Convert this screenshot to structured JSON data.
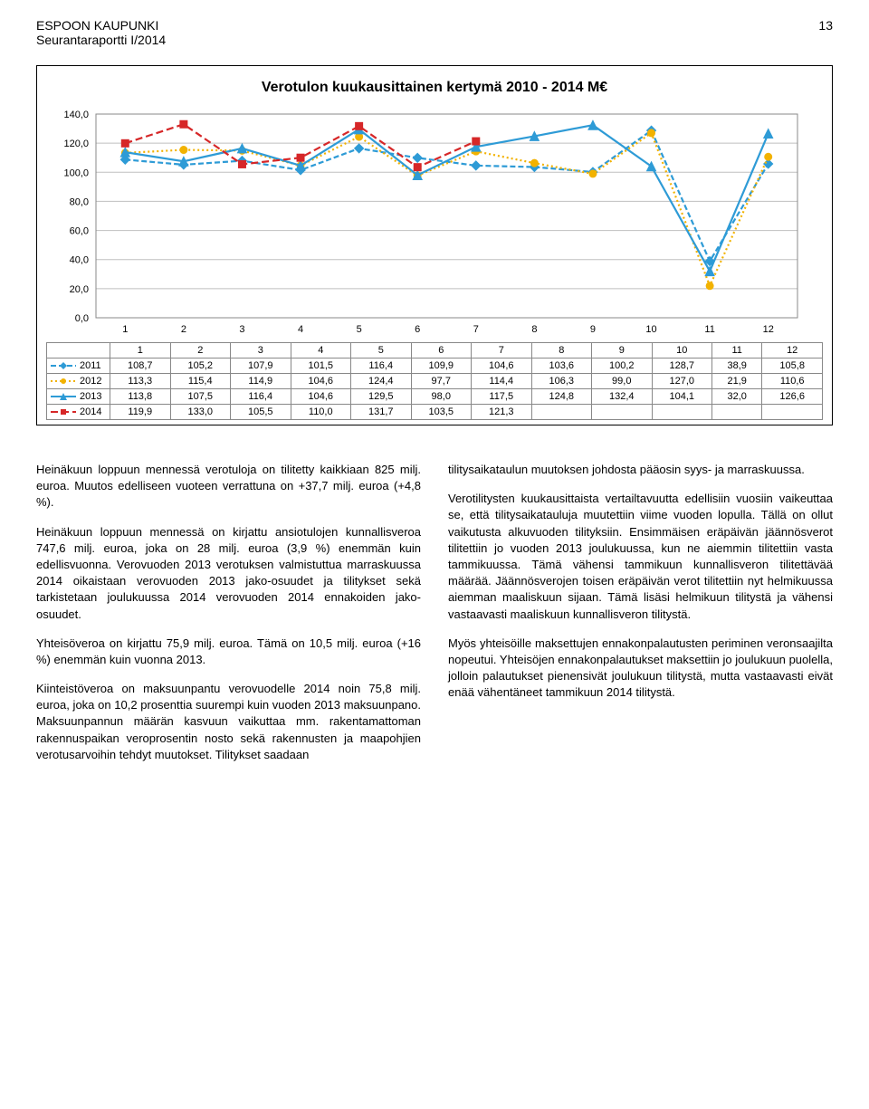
{
  "header": {
    "org": "ESPOON KAUPUNKI",
    "report": "Seurantaraportti I/2014",
    "page": "13"
  },
  "chart": {
    "title": "Verotulon kuukausittainen kertymä 2010 - 2014 M€",
    "type": "line",
    "xlabels": [
      "1",
      "2",
      "3",
      "4",
      "5",
      "6",
      "7",
      "8",
      "9",
      "10",
      "11",
      "12"
    ],
    "ylim": [
      0,
      140
    ],
    "ytick_step": 20,
    "yticks": [
      "0,0",
      "20,0",
      "40,0",
      "60,0",
      "80,0",
      "100,0",
      "120,0",
      "140,0"
    ],
    "background_color": "#ffffff",
    "grid_color": "#bfbfbf",
    "series": [
      {
        "name": "2011",
        "color": "#2e9bd6",
        "marker": "diamond",
        "dash": "6,3",
        "values": [
          108.7,
          105.2,
          107.9,
          101.5,
          116.4,
          109.9,
          104.6,
          103.6,
          100.2,
          128.7,
          38.9,
          105.8
        ],
        "labels": [
          "108,7",
          "105,2",
          "107,9",
          "101,5",
          "116,4",
          "109,9",
          "104,6",
          "103,6",
          "100,2",
          "128,7",
          "38,9",
          "105,8"
        ]
      },
      {
        "name": "2012",
        "color": "#f2b200",
        "marker": "circle",
        "dash": "2,3",
        "values": [
          113.3,
          115.4,
          114.9,
          104.6,
          124.4,
          97.7,
          114.4,
          106.3,
          99.0,
          127.0,
          21.9,
          110.6
        ],
        "labels": [
          "113,3",
          "115,4",
          "114,9",
          "104,6",
          "124,4",
          "97,7",
          "114,4",
          "106,3",
          "99,0",
          "127,0",
          "21,9",
          "110,6"
        ]
      },
      {
        "name": "2013",
        "color": "#2e9bd6",
        "marker": "triangle",
        "dash": "none",
        "values": [
          113.8,
          107.5,
          116.4,
          104.6,
          129.5,
          98.0,
          117.5,
          124.8,
          132.4,
          104.1,
          32.0,
          126.6
        ],
        "labels": [
          "113,8",
          "107,5",
          "116,4",
          "104,6",
          "129,5",
          "98,0",
          "117,5",
          "124,8",
          "132,4",
          "104,1",
          "32,0",
          "126,6"
        ]
      },
      {
        "name": "2014",
        "color": "#d62728",
        "marker": "square",
        "dash": "8,4",
        "values": [
          119.9,
          133.0,
          105.5,
          110.0,
          131.7,
          103.5,
          121.3
        ],
        "labels": [
          "119,9",
          "133,0",
          "105,5",
          "110,0",
          "131,7",
          "103,5",
          "121,3"
        ]
      }
    ]
  },
  "text": {
    "left": {
      "p1": "Heinäkuun loppuun mennessä verotuloja on tilitetty kaikkiaan 825 milj. euroa. Muutos edelliseen vuoteen verrattuna on +37,7 milj. euroa (+4,8 %).",
      "p2": "Heinäkuun loppuun mennessä on kirjattu ansiotulojen kunnallisveroa 747,6 milj. euroa, joka on 28 milj. euroa (3,9 %) enemmän kuin edellisvuonna. Verovuoden 2013 verotuksen valmistuttua marraskuussa 2014 oikaistaan verovuoden 2013 jako-osuudet ja tilitykset sekä tarkistetaan joulukuussa 2014 verovuoden 2014 ennakoiden jako-osuudet.",
      "p3": "Yhteisöveroa on kirjattu 75,9 milj. euroa. Tämä on 10,5 milj. euroa (+16 %) enemmän kuin vuonna 2013.",
      "p4": "Kiinteistöveroa on maksuunpantu verovuodelle 2014 noin 75,8 milj. euroa, joka on 10,2 prosenttia suurempi kuin vuoden 2013 maksuunpano. Maksuunpannun määrän kasvuun vaikuttaa mm. rakentamattoman rakennuspaikan veroprosentin nosto sekä rakennusten ja maapohjien verotusarvoihin tehdyt muutokset. Tilitykset saadaan"
    },
    "right": {
      "p1": "tilitysaikataulun muutoksen johdosta pääosin syys- ja marraskuussa.",
      "p2": "Verotilitysten kuukausittaista vertailtavuutta edellisiin vuosiin vaikeuttaa se, että tilitysaikatauluja muutettiin viime vuoden lopulla. Tällä on ollut vaikutusta alkuvuoden tilityksiin. Ensimmäisen eräpäivän jäännösverot tilitettiin jo vuoden 2013 joulukuussa, kun ne aiemmin tilitettiin vasta tammikuussa. Tämä vähensi tammikuun kunnallisveron tilitettävää määrää. Jäännösverojen toisen eräpäivän verot tilitettiin nyt helmikuussa aiemman maaliskuun sijaan. Tämä lisäsi helmikuun tilitystä ja vähensi vastaavasti maaliskuun kunnallisveron tilitystä.",
      "p3": "Myös yhteisöille maksettujen ennakonpalautusten periminen veronsaajilta nopeutui. Yhteisöjen ennakonpalautukset maksettiin jo joulukuun puolella, jolloin palautukset pienensivät joulukuun tilitystä, mutta vastaavasti eivät enää vähentäneet tammikuun 2014 tilitystä."
    }
  }
}
